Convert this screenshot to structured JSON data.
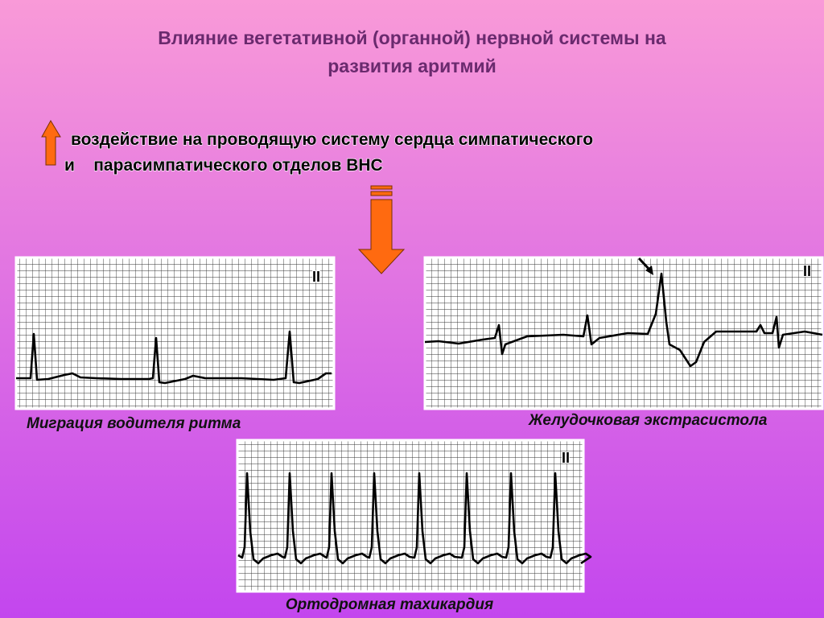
{
  "title": {
    "lines": [
      "Влияние вегетативной (органной) нервной системы на",
      "развития аритмий"
    ]
  },
  "statement": {
    "lines": [
      "воздействие на проводящую систему сердца симпатического",
      "и    парасимпатического отделов ВНС"
    ]
  },
  "ecg_panels": [
    {
      "lead": "II",
      "caption": "Миграция водителя ритма"
    },
    {
      "lead": "II",
      "caption": "Желудочковая экстрасистола"
    },
    {
      "lead": "II",
      "caption": "Ортодромная тахикардия"
    }
  ]
}
